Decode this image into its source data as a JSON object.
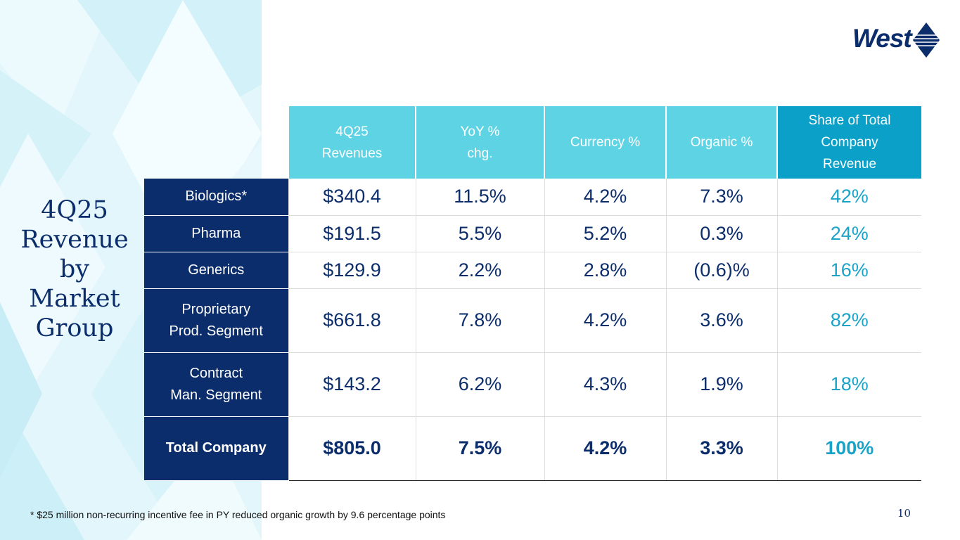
{
  "slide": {
    "title_lines": [
      "4Q25",
      "Revenue",
      "by",
      "Market",
      "Group"
    ],
    "logo_text": "West",
    "footnote": "* $25 million non-recurring incentive fee in PY reduced organic growth by 9.6 percentage points",
    "page_number": "10",
    "colors": {
      "navy": "#0b2d6b",
      "header_cyan": "#5ed3e4",
      "share_header": "#0aa0c8",
      "share_text": "#1aa3c8"
    }
  },
  "table": {
    "headers": [
      {
        "line1": "4Q25",
        "line2": "Revenues"
      },
      {
        "line1": "YoY %",
        "line2": "chg."
      },
      {
        "line1": "Currency %",
        "line2": ""
      },
      {
        "line1": "Organic %",
        "line2": ""
      },
      {
        "line1": "Share of Total",
        "line2": "Company",
        "line3": "Revenue"
      }
    ],
    "rows": [
      {
        "label": "Biologics*",
        "revenue": "$340.4",
        "yoy": "11.5%",
        "currency": "4.2%",
        "organic": "7.3%",
        "share": "42%"
      },
      {
        "label": "Pharma",
        "revenue": "$191.5",
        "yoy": "5.5%",
        "currency": "5.2%",
        "organic": "0.3%",
        "share": "24%"
      },
      {
        "label": "Generics",
        "revenue": "$129.9",
        "yoy": "2.2%",
        "currency": "2.8%",
        "organic": "(0.6)%",
        "share": "16%"
      },
      {
        "label_line1": "Proprietary",
        "label_line2": "Prod. Segment",
        "revenue": "$661.8",
        "yoy": "7.8%",
        "currency": "4.2%",
        "organic": "3.6%",
        "share": "82%"
      },
      {
        "label_line1": "Contract",
        "label_line2": "Man. Segment",
        "revenue": "$143.2",
        "yoy": "6.2%",
        "currency": "4.3%",
        "organic": "1.9%",
        "share": "18%"
      },
      {
        "label": "Total Company",
        "revenue": "$805.0",
        "yoy": "7.5%",
        "currency": "4.2%",
        "organic": "3.3%",
        "share": "100%"
      }
    ]
  }
}
